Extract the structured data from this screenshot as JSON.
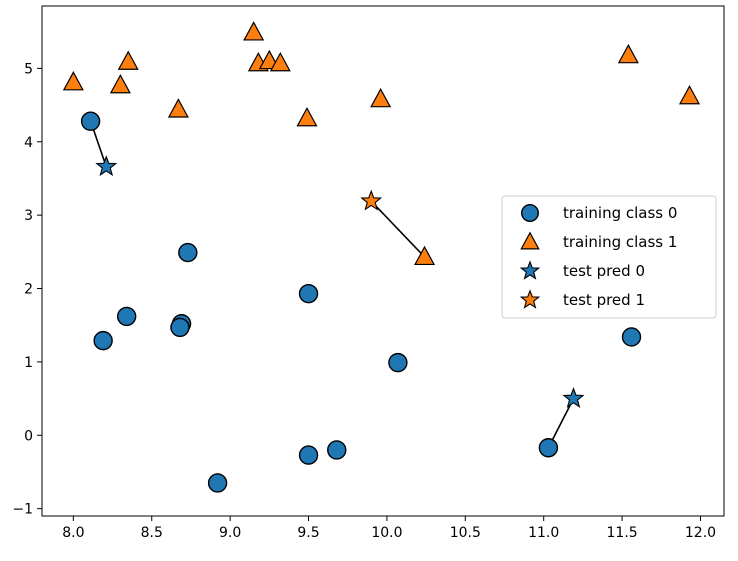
{
  "chart_data": {
    "type": "scatter",
    "title": "",
    "xlabel": "",
    "ylabel": "",
    "xlim": [
      7.8,
      12.15
    ],
    "ylim": [
      -1.1,
      5.85
    ],
    "xticks": [
      8.0,
      8.5,
      9.0,
      9.5,
      10.0,
      10.5,
      11.0,
      11.5,
      12.0
    ],
    "xtick_labels": [
      "8.0",
      "8.5",
      "9.0",
      "9.5",
      "10.0",
      "10.5",
      "11.0",
      "11.5",
      "12.0"
    ],
    "yticks": [
      -1,
      0,
      1,
      2,
      3,
      4,
      5
    ],
    "ytick_labels": [
      "−1",
      "0",
      "1",
      "2",
      "3",
      "4",
      "5"
    ],
    "grid": false,
    "legend_position": "center-right",
    "colors": {
      "class0": "#1f77b4",
      "class1": "#ff7f0e",
      "edge": "#000000",
      "axis": "#000000",
      "legend_border": "#cccccc"
    },
    "series": [
      {
        "name": "training class 0",
        "marker": "circle",
        "color": "#1f77b4",
        "points": [
          {
            "x": 8.11,
            "y": 4.28
          },
          {
            "x": 8.19,
            "y": 1.29
          },
          {
            "x": 8.34,
            "y": 1.62
          },
          {
            "x": 8.69,
            "y": 1.52
          },
          {
            "x": 8.68,
            "y": 1.47
          },
          {
            "x": 8.73,
            "y": 2.49
          },
          {
            "x": 8.92,
            "y": -0.65
          },
          {
            "x": 9.5,
            "y": 1.93
          },
          {
            "x": 9.5,
            "y": -0.27
          },
          {
            "x": 9.68,
            "y": -0.2
          },
          {
            "x": 10.07,
            "y": 0.99
          },
          {
            "x": 11.03,
            "y": -0.17
          },
          {
            "x": 11.56,
            "y": 1.34
          }
        ]
      },
      {
        "name": "training class 1",
        "marker": "triangle",
        "color": "#ff7f0e",
        "points": [
          {
            "x": 8.0,
            "y": 4.81
          },
          {
            "x": 8.3,
            "y": 4.77
          },
          {
            "x": 8.35,
            "y": 5.09
          },
          {
            "x": 8.67,
            "y": 4.44
          },
          {
            "x": 9.15,
            "y": 5.49
          },
          {
            "x": 9.18,
            "y": 5.07
          },
          {
            "x": 9.25,
            "y": 5.1
          },
          {
            "x": 9.32,
            "y": 5.07
          },
          {
            "x": 9.49,
            "y": 4.32
          },
          {
            "x": 9.96,
            "y": 4.58
          },
          {
            "x": 10.24,
            "y": 2.43
          },
          {
            "x": 11.54,
            "y": 5.18
          },
          {
            "x": 11.93,
            "y": 4.62
          }
        ]
      },
      {
        "name": "test pred 0",
        "marker": "star",
        "color": "#1f77b4",
        "points": [
          {
            "x": 8.21,
            "y": 3.66
          },
          {
            "x": 11.19,
            "y": 0.5
          }
        ]
      },
      {
        "name": "test pred 1",
        "marker": "star",
        "color": "#ff7f0e",
        "points": [
          {
            "x": 9.9,
            "y": 3.19
          }
        ]
      }
    ],
    "neighbor_lines": [
      {
        "from": {
          "x": 8.21,
          "y": 3.66
        },
        "to": {
          "x": 8.11,
          "y": 4.28
        }
      },
      {
        "from": {
          "x": 9.9,
          "y": 3.19
        },
        "to": {
          "x": 10.24,
          "y": 2.43
        }
      },
      {
        "from": {
          "x": 11.19,
          "y": 0.5
        },
        "to": {
          "x": 11.03,
          "y": -0.17
        }
      }
    ],
    "legend": [
      {
        "label": "training class 0",
        "marker": "circle",
        "color": "#1f77b4"
      },
      {
        "label": "training class 1",
        "marker": "triangle",
        "color": "#ff7f0e"
      },
      {
        "label": "test pred 0",
        "marker": "star",
        "color": "#1f77b4"
      },
      {
        "label": "test pred 1",
        "marker": "star",
        "color": "#ff7f0e"
      }
    ]
  }
}
